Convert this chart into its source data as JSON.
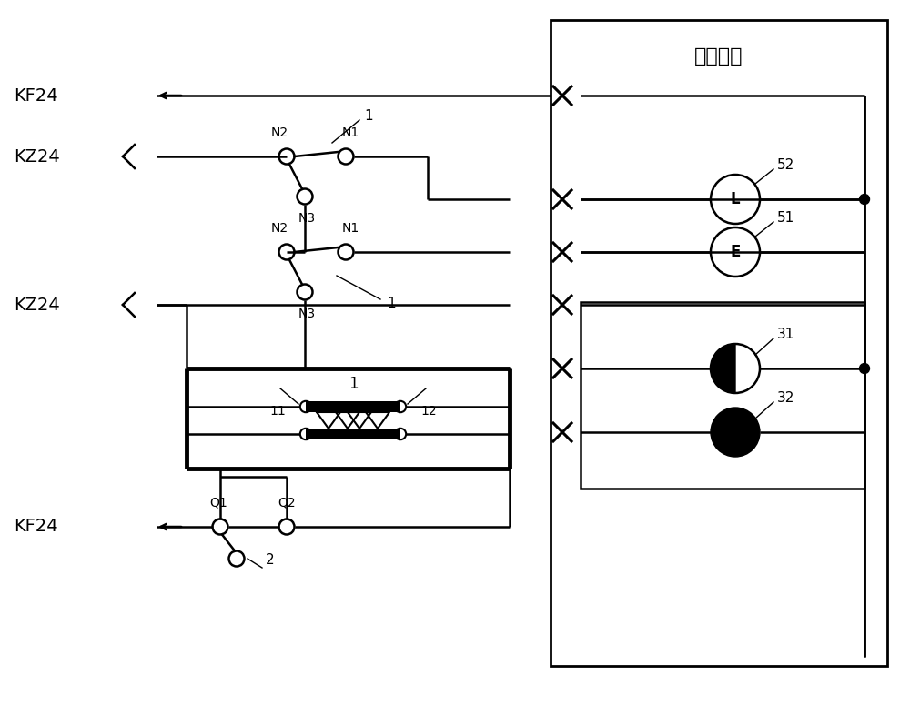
{
  "bg_color": "#ffffff",
  "title_cabinet": "机柜盘面",
  "label_KF24_top": "KF24",
  "label_KZ24_top": "KZ24",
  "label_KZ24_bot": "KZ24",
  "label_KF24_bot": "KF24",
  "lw": 1.8,
  "lw_thick": 3.5,
  "fontsize_label": 14,
  "fontsize_num": 11
}
